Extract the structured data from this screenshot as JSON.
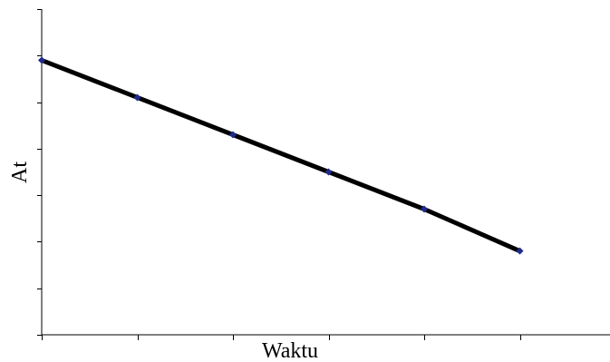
{
  "chart_data": {
    "type": "line",
    "title": "",
    "xlabel": "Waktu",
    "ylabel": "At",
    "x": [
      0,
      1,
      2,
      3,
      4,
      5
    ],
    "series": [
      {
        "values": [
          5.9,
          5.1,
          4.3,
          3.5,
          2.7,
          1.8
        ]
      }
    ],
    "xlim": [
      0,
      6
    ],
    "ylim": [
      0,
      7
    ],
    "x_tick_count": 7,
    "y_tick_count": 8,
    "tick_labels_shown": false,
    "grid": false,
    "legend": "none",
    "colors": {
      "line": "#000000",
      "marker": "#1f2a8c",
      "axis": "#000000"
    }
  }
}
